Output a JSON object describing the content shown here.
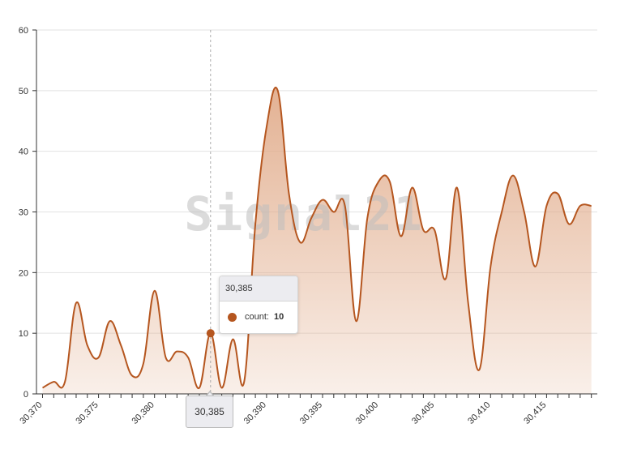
{
  "colors": {
    "series": "#b5561f",
    "area_top": "#e0a987",
    "grid": "#e2e2e2",
    "axis": "#333333",
    "crosshair": "#aaaaaa"
  },
  "watermark": "Signal21",
  "chart_data": {
    "type": "area",
    "ylim": [
      0,
      60
    ],
    "xlim": [
      30370,
      30420
    ],
    "yticks": [
      0,
      10,
      20,
      30,
      40,
      50,
      60
    ],
    "xticks": [
      30370,
      30375,
      30380,
      30385,
      30390,
      30395,
      30400,
      30405,
      30410,
      30415
    ],
    "xtick_labels": [
      "30,370",
      "30,375",
      "30,380",
      "30,385",
      "30,390",
      "30,395",
      "30,400",
      "30,405",
      "30,410",
      "30,415"
    ],
    "grid": true,
    "curve": "smooth",
    "series": [
      {
        "name": "count",
        "x": [
          30370,
          30371,
          30372,
          30373,
          30374,
          30375,
          30376,
          30377,
          30378,
          30379,
          30380,
          30381,
          30382,
          30383,
          30384,
          30385,
          30386,
          30387,
          30388,
          30389,
          30390,
          30391,
          30392,
          30393,
          30394,
          30395,
          30396,
          30397,
          30398,
          30399,
          30400,
          30401,
          30402,
          30403,
          30404,
          30405,
          30406,
          30407,
          30408,
          30409,
          30410,
          30411,
          30412,
          30413,
          30414,
          30415,
          30416,
          30417,
          30418,
          30419
        ],
        "values": [
          1,
          2,
          2,
          15,
          8,
          6,
          12,
          8,
          3,
          5,
          17,
          6,
          7,
          6,
          1,
          10,
          1,
          9,
          2,
          28,
          44,
          50,
          33,
          25,
          29,
          32,
          30,
          31,
          12,
          29,
          35,
          35,
          26,
          34,
          27,
          27,
          19,
          34,
          15,
          4,
          21,
          30,
          36,
          30,
          21,
          31,
          33,
          28,
          31,
          31
        ]
      }
    ]
  },
  "hover": {
    "x_label": "30,385",
    "series_name": "count:",
    "value": "10"
  }
}
